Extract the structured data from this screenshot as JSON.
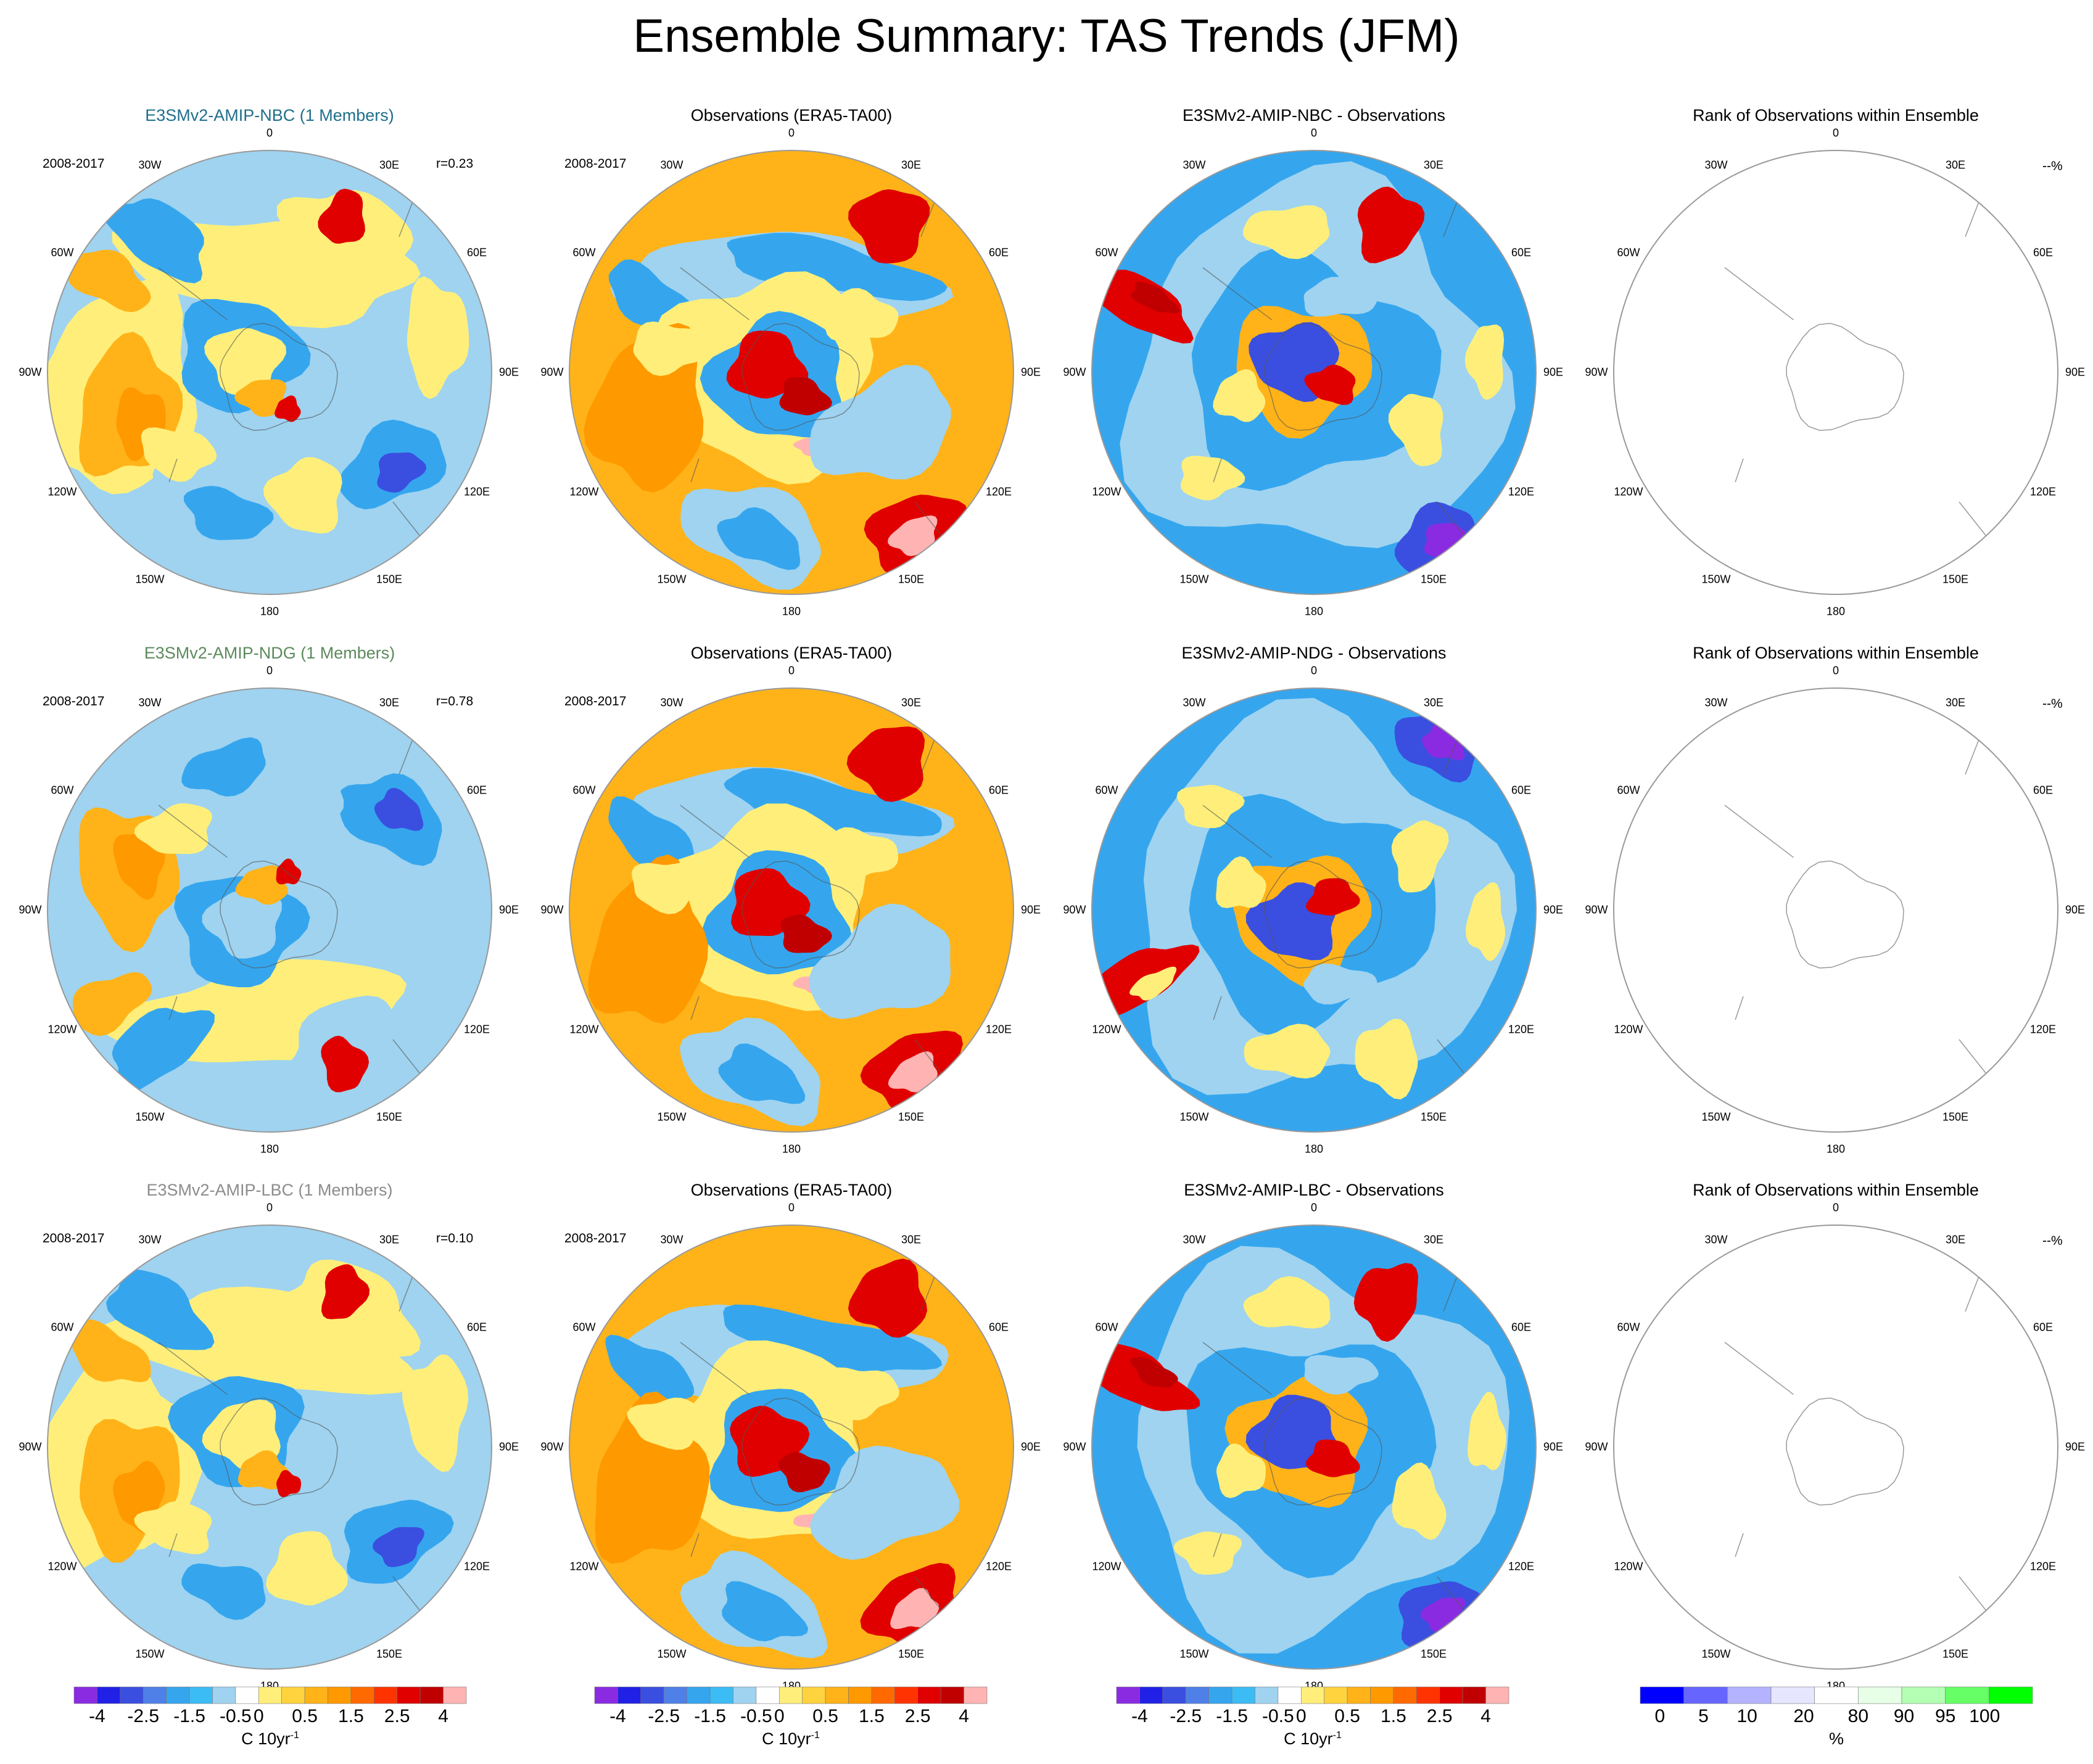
{
  "figure": {
    "title": "Ensemble Summary: TAS Trends (JFM)",
    "period": "2008-2017",
    "longitude_labels": [
      "0",
      "30E",
      "60E",
      "90E",
      "120E",
      "150E",
      "180",
      "150W",
      "120W",
      "90W",
      "60W",
      "30W"
    ],
    "missing_rank": "--%"
  },
  "chart_data": [
    {
      "type": "heatmap",
      "row": 0,
      "title": "E3SMv2-AMIP-NBC (1 Members)",
      "title_color": "#1f6f8b",
      "period": "2008-2017",
      "corr_label": "r=0.23",
      "projection": "south-polar-stereographic",
      "field": "model"
    },
    {
      "type": "heatmap",
      "row": 0,
      "title": "Observations (ERA5-TA00)",
      "title_color": "#000000",
      "period": "2008-2017",
      "projection": "south-polar-stereographic",
      "field": "obs"
    },
    {
      "type": "heatmap",
      "row": 0,
      "title": "E3SMv2-AMIP-NBC - Observations",
      "title_color": "#000000",
      "projection": "south-polar-stereographic",
      "field": "diff"
    },
    {
      "type": "heatmap",
      "row": 0,
      "title": "Rank of Observations within Ensemble",
      "title_color": "#000000",
      "rank_label": "--%",
      "projection": "south-polar-stereographic",
      "field": "rank"
    },
    {
      "type": "heatmap",
      "row": 1,
      "title": "E3SMv2-AMIP-NDG (1 Members)",
      "title_color": "#5c8a5c",
      "period": "2008-2017",
      "corr_label": "r=0.78",
      "projection": "south-polar-stereographic",
      "field": "model"
    },
    {
      "type": "heatmap",
      "row": 1,
      "title": "Observations (ERA5-TA00)",
      "title_color": "#000000",
      "period": "2008-2017",
      "projection": "south-polar-stereographic",
      "field": "obs"
    },
    {
      "type": "heatmap",
      "row": 1,
      "title": "E3SMv2-AMIP-NDG - Observations",
      "title_color": "#000000",
      "projection": "south-polar-stereographic",
      "field": "diff"
    },
    {
      "type": "heatmap",
      "row": 1,
      "title": "Rank of Observations within Ensemble",
      "title_color": "#000000",
      "rank_label": "--%",
      "projection": "south-polar-stereographic",
      "field": "rank"
    },
    {
      "type": "heatmap",
      "row": 2,
      "title": "E3SMv2-AMIP-LBC (1 Members)",
      "title_color": "#8c8c8c",
      "period": "2008-2017",
      "corr_label": "r=0.10",
      "projection": "south-polar-stereographic",
      "field": "model"
    },
    {
      "type": "heatmap",
      "row": 2,
      "title": "Observations (ERA5-TA00)",
      "title_color": "#000000",
      "period": "2008-2017",
      "projection": "south-polar-stereographic",
      "field": "obs"
    },
    {
      "type": "heatmap",
      "row": 2,
      "title": "E3SMv2-AMIP-LBC - Observations",
      "title_color": "#000000",
      "projection": "south-polar-stereographic",
      "field": "diff"
    },
    {
      "type": "heatmap",
      "row": 2,
      "title": "Rank of Observations within Ensemble",
      "title_color": "#000000",
      "rank_label": "--%",
      "projection": "south-polar-stereographic",
      "field": "rank"
    }
  ],
  "colorbars": {
    "trend": {
      "unit": "C 10yr",
      "unit_exponent": "-1",
      "labels": [
        "-4",
        "-2.5",
        "-1.5",
        "-0.5",
        "0",
        "0.5",
        "1.5",
        "2.5",
        "4"
      ],
      "colors": [
        "#8a2be2",
        "#2020e6",
        "#3a4fe0",
        "#4f80e8",
        "#35a6ee",
        "#3cbcf5",
        "#9fd3f0",
        "#ffffff",
        "#ffef7a",
        "#ffd33d",
        "#ffb319",
        "#ff9900",
        "#ff6a00",
        "#ff3300",
        "#e00000",
        "#c00000",
        "#ffb3b3"
      ]
    },
    "rank": {
      "unit": "%",
      "labels": [
        "0",
        "5",
        "10",
        "20",
        "80",
        "90",
        "95",
        "100"
      ],
      "colors": [
        "#0000ff",
        "#6666ff",
        "#b3b3ff",
        "#e6e6ff",
        "#ffffff",
        "#e6ffe6",
        "#b3ffb3",
        "#66ff66",
        "#00ff00"
      ]
    }
  }
}
